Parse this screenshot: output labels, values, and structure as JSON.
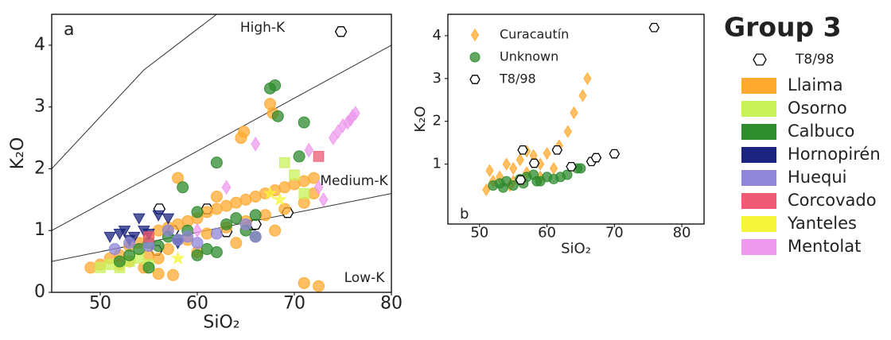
{
  "chart_data": [
    {
      "type": "scatter",
      "panel_label": "a",
      "xlabel": "SiO₂",
      "ylabel": "K₂O",
      "xlim": [
        45,
        80
      ],
      "ylim": [
        0,
        4.5
      ],
      "xticks": [
        50,
        60,
        70,
        80
      ],
      "yticks": [
        0,
        1,
        2,
        3,
        4
      ],
      "annotations": [
        "High-K",
        "Medium-K",
        "Low-K"
      ],
      "reference_lines": [
        {
          "x": [
            45,
            54.5,
            62
          ],
          "y": [
            2.0,
            3.6,
            4.5
          ]
        },
        {
          "x": [
            45,
            80
          ],
          "y": [
            1.0,
            4.0
          ]
        },
        {
          "x": [
            45,
            80
          ],
          "y": [
            0.5,
            1.6
          ]
        }
      ],
      "legend": "outside-right",
      "legend_title": "Group 3",
      "series": [
        {
          "name": "T8/98",
          "color": "#000000",
          "marker": "hexagon",
          "hollow": true,
          "x": [
            56.1,
            61.0,
            57.5,
            55.8,
            63.0,
            65.7,
            66.0,
            69.3,
            74.8
          ],
          "y": [
            1.35,
            1.35,
            1.0,
            0.68,
            0.98,
            1.09,
            1.1,
            1.29,
            4.22
          ]
        },
        {
          "name": "Llaima",
          "color": "#ffaa2e",
          "marker": "circle",
          "x": [
            49,
            50,
            51,
            52,
            53,
            54,
            55,
            56,
            57,
            58,
            59,
            60,
            61,
            62,
            63,
            64,
            65,
            66,
            67,
            68,
            69,
            70,
            71,
            72,
            53,
            55,
            57,
            59,
            61,
            63,
            65,
            67,
            69,
            71,
            52,
            56,
            60,
            64,
            68,
            72,
            54.5,
            56,
            57.5,
            71,
            72.5,
            67.5,
            67.8,
            64.8,
            64.5,
            58,
            62
          ],
          "y": [
            0.4,
            0.45,
            0.55,
            0.6,
            0.75,
            0.8,
            0.9,
            1.0,
            1.05,
            1.1,
            1.15,
            1.2,
            1.3,
            1.35,
            1.4,
            1.45,
            1.5,
            1.55,
            1.6,
            1.65,
            1.7,
            1.75,
            1.8,
            1.85,
            0.5,
            0.6,
            0.7,
            0.85,
            0.95,
            1.05,
            1.15,
            1.25,
            1.35,
            1.45,
            0.45,
            0.55,
            0.65,
            0.8,
            1.0,
            1.6,
            0.4,
            0.3,
            0.28,
            0.15,
            0.1,
            3.05,
            2.9,
            2.6,
            2.5,
            1.85,
            1.55
          ]
        },
        {
          "name": "Osorno",
          "color": "#c9f25a",
          "marker": "square",
          "x": [
            50,
            51,
            52,
            53,
            54,
            55,
            69,
            70,
            71
          ],
          "y": [
            0.4,
            0.45,
            0.4,
            0.5,
            0.55,
            0.45,
            2.1,
            1.9,
            1.6
          ]
        },
        {
          "name": "Calbuco",
          "color": "#2e8b2e",
          "marker": "circle",
          "x": [
            52,
            53,
            54,
            55,
            56,
            57,
            58,
            59,
            60,
            61,
            62,
            63,
            64,
            65,
            66,
            62,
            58.5,
            67.5,
            68,
            68.3,
            71,
            70.5,
            66,
            55,
            60
          ],
          "y": [
            0.5,
            0.6,
            0.7,
            0.8,
            0.75,
            0.9,
            0.85,
            1.0,
            0.6,
            0.7,
            0.65,
            1.1,
            1.2,
            1.0,
            0.9,
            2.1,
            1.7,
            3.3,
            3.35,
            2.85,
            2.75,
            2.2,
            1.25,
            0.4,
            1.3
          ]
        },
        {
          "name": "Hornopirén",
          "color": "#1a237e",
          "marker": "triangle-down",
          "x": [
            51,
            52,
            52.5,
            53,
            53.5,
            54,
            54.5,
            55,
            56,
            57,
            58
          ],
          "y": [
            0.9,
            0.95,
            1.0,
            0.85,
            0.9,
            1.2,
            1.0,
            0.95,
            1.25,
            1.2,
            0.8
          ]
        },
        {
          "name": "Huequi",
          "color": "#8f86d9",
          "marker": "circle",
          "x": [
            51.5,
            53,
            55,
            57,
            58,
            59,
            60,
            62,
            65,
            66
          ],
          "y": [
            0.7,
            0.8,
            0.75,
            1.0,
            0.85,
            0.9,
            0.8,
            0.95,
            1.1,
            0.9
          ]
        },
        {
          "name": "Corcovado",
          "color": "#ef5a74",
          "marker": "square",
          "x": [
            72.5,
            55
          ],
          "y": [
            2.2,
            0.9
          ]
        },
        {
          "name": "Yanteles",
          "color": "#f5f53c",
          "marker": "star",
          "x": [
            67.5,
            68.5,
            58
          ],
          "y": [
            1.6,
            1.5,
            0.55
          ]
        },
        {
          "name": "Mentolat",
          "color": "#ee99ee",
          "marker": "diamond",
          "x": [
            66,
            71.5,
            72.5,
            73,
            74,
            74.5,
            75,
            75.5,
            76,
            76.3,
            75.8,
            60,
            63
          ],
          "y": [
            2.4,
            2.3,
            1.7,
            1.5,
            2.5,
            2.6,
            2.7,
            2.75,
            2.85,
            2.9,
            2.8,
            1.0,
            1.7
          ]
        }
      ]
    },
    {
      "type": "scatter",
      "panel_label": "b",
      "xlabel": "SiO₂",
      "ylabel": "K₂O",
      "xlim": [
        45.3,
        83.3
      ],
      "ylim": [
        -0.4,
        4.5
      ],
      "xticks": [
        50,
        60,
        70,
        80
      ],
      "yticks": [
        1,
        2,
        3,
        4
      ],
      "legend": "upper-left",
      "series": [
        {
          "name": "Curacautín",
          "color": "#ffaa2e",
          "marker": "diamond",
          "x": [
            51,
            51.5,
            52,
            53,
            54,
            54.5,
            55,
            56,
            57,
            58,
            59,
            60,
            61,
            55,
            57,
            59,
            61.8,
            63.1,
            64,
            65.3,
            66
          ],
          "y": [
            0.4,
            0.85,
            0.6,
            0.7,
            1.0,
            0.5,
            0.9,
            1.1,
            0.8,
            1.2,
            1.0,
            1.25,
            0.9,
            0.6,
            1.3,
            0.7,
            1.43,
            1.76,
            2.2,
            2.6,
            3.0
          ]
        },
        {
          "name": "Unknown",
          "color": "#2e8b2e",
          "marker": "circle",
          "x": [
            52,
            53,
            54,
            55,
            56,
            57,
            58,
            59,
            60,
            61,
            62,
            63,
            64.5,
            65,
            53.5,
            56.5,
            58.5
          ],
          "y": [
            0.5,
            0.55,
            0.6,
            0.5,
            0.65,
            0.7,
            0.75,
            0.6,
            0.7,
            0.65,
            0.7,
            0.75,
            0.9,
            0.9,
            0.45,
            0.55,
            0.6
          ]
        },
        {
          "name": "T8/98",
          "color": "#000000",
          "marker": "hexagon",
          "hollow": true,
          "x": [
            56.4,
            61.5,
            58.1,
            56.1,
            63.6,
            66.6,
            67.3,
            70.0,
            75.9
          ],
          "y": [
            1.33,
            1.33,
            1.02,
            0.63,
            0.94,
            1.06,
            1.15,
            1.24,
            4.19
          ]
        }
      ]
    }
  ]
}
